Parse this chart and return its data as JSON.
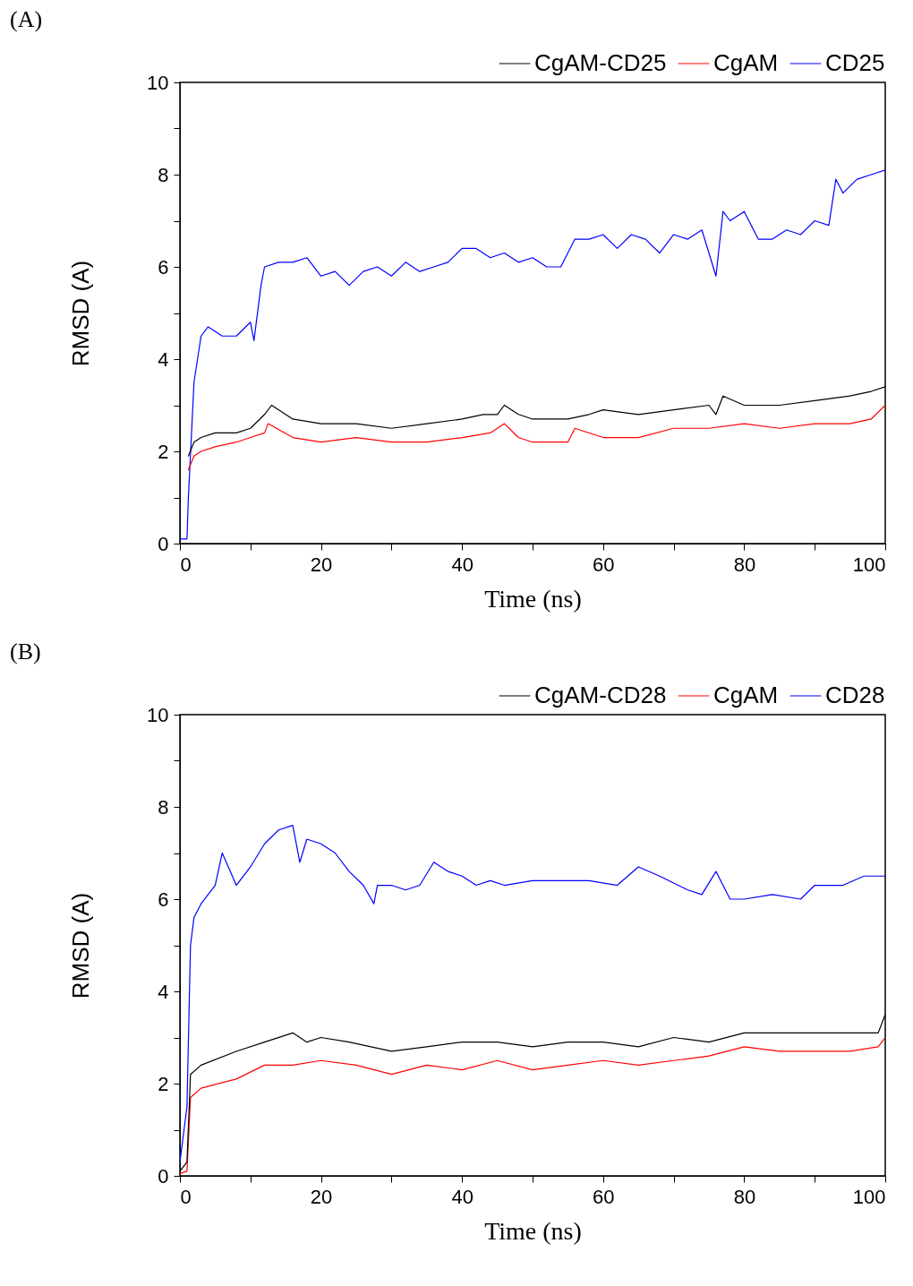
{
  "chart_data": [
    {
      "type": "line",
      "title": "(A)",
      "xlabel": "Time (ns)",
      "ylabel": "RMSD (A)",
      "xlim": [
        0,
        100
      ],
      "ylim": [
        0,
        10
      ],
      "xticks": [
        0,
        {
          "value": 10,
          "label": null
        },
        20,
        {
          "value": 30,
          "label": null
        },
        40,
        {
          "value": 50,
          "label": null
        },
        60,
        {
          "value": 70,
          "label": null
        },
        80,
        {
          "value": 90,
          "label": null
        },
        100
      ],
      "yticks": [
        0,
        {
          "value": 1,
          "label": null
        },
        2,
        {
          "value": 3,
          "label": null
        },
        4,
        {
          "value": 5,
          "label": null
        },
        6,
        {
          "value": 7,
          "label": null
        },
        8,
        {
          "value": 9,
          "label": null
        },
        10
      ],
      "grid": false,
      "legend": "top",
      "marker": "none",
      "line_style": "solid",
      "series": [
        {
          "name": "CgAM-CD25",
          "color": "#000000",
          "x": [
            1.2,
            2,
            3,
            5,
            8,
            10,
            12,
            13,
            16,
            20,
            25,
            30,
            35,
            40,
            43,
            45,
            46,
            48,
            50,
            55,
            58,
            60,
            65,
            70,
            75,
            76,
            77,
            80,
            85,
            90,
            95,
            98,
            100
          ],
          "values": [
            1.9,
            2.2,
            2.3,
            2.4,
            2.4,
            2.5,
            2.8,
            3.0,
            2.7,
            2.6,
            2.6,
            2.5,
            2.6,
            2.7,
            2.8,
            2.8,
            3.0,
            2.8,
            2.7,
            2.7,
            2.8,
            2.9,
            2.8,
            2.9,
            3.0,
            2.8,
            3.2,
            3.0,
            3.0,
            3.1,
            3.2,
            3.3,
            3.4
          ]
        },
        {
          "name": "CgAM",
          "color": "#ff0000",
          "x": [
            1.2,
            2,
            3,
            5,
            8,
            10,
            12,
            12.5,
            16,
            20,
            25,
            30,
            35,
            40,
            44,
            46,
            48,
            50,
            55,
            56,
            60,
            65,
            70,
            75,
            80,
            85,
            90,
            95,
            98,
            100
          ],
          "values": [
            1.6,
            1.9,
            2.0,
            2.1,
            2.2,
            2.3,
            2.4,
            2.6,
            2.3,
            2.2,
            2.3,
            2.2,
            2.2,
            2.3,
            2.4,
            2.6,
            2.3,
            2.2,
            2.2,
            2.5,
            2.3,
            2.3,
            2.5,
            2.5,
            2.6,
            2.5,
            2.6,
            2.6,
            2.7,
            3.0
          ]
        },
        {
          "name": "CD25",
          "color": "#0000ff",
          "x": [
            0,
            1,
            1.2,
            2,
            3,
            4,
            6,
            8,
            10,
            10.5,
            11.5,
            12,
            14,
            16,
            18,
            20,
            22,
            24,
            26,
            28,
            30,
            32,
            34,
            36,
            38,
            40,
            42,
            44,
            46,
            48,
            50,
            52,
            54,
            56,
            58,
            60,
            62,
            64,
            66,
            68,
            70,
            72,
            74,
            76,
            77,
            78,
            80,
            82,
            84,
            86,
            88,
            90,
            92,
            93,
            94,
            96,
            98,
            100
          ],
          "values": [
            0.1,
            0.1,
            1.0,
            3.5,
            4.5,
            4.7,
            4.5,
            4.5,
            4.8,
            4.4,
            5.6,
            6.0,
            6.1,
            6.1,
            6.2,
            5.8,
            5.9,
            5.6,
            5.9,
            6.0,
            5.8,
            6.1,
            5.9,
            6.0,
            6.1,
            6.4,
            6.4,
            6.2,
            6.3,
            6.1,
            6.2,
            6.0,
            6.0,
            6.6,
            6.6,
            6.7,
            6.4,
            6.7,
            6.6,
            6.3,
            6.7,
            6.6,
            6.8,
            5.8,
            7.2,
            7.0,
            7.2,
            6.6,
            6.6,
            6.8,
            6.7,
            7.0,
            6.9,
            7.9,
            7.6,
            7.9,
            8.0,
            8.1
          ]
        }
      ]
    },
    {
      "type": "line",
      "title": "(B)",
      "xlabel": "Time (ns)",
      "ylabel": "RMSD (A)",
      "xlim": [
        0,
        100
      ],
      "ylim": [
        0,
        10
      ],
      "xticks": [
        0,
        {
          "value": 10,
          "label": null
        },
        20,
        {
          "value": 30,
          "label": null
        },
        40,
        {
          "value": 50,
          "label": null
        },
        60,
        {
          "value": 70,
          "label": null
        },
        80,
        {
          "value": 90,
          "label": null
        },
        100
      ],
      "yticks": [
        0,
        {
          "value": 1,
          "label": null
        },
        2,
        {
          "value": 3,
          "label": null
        },
        4,
        {
          "value": 5,
          "label": null
        },
        6,
        {
          "value": 7,
          "label": null
        },
        8,
        {
          "value": 9,
          "label": null
        },
        10
      ],
      "grid": false,
      "legend": "top",
      "marker": "none",
      "line_style": "solid",
      "series": [
        {
          "name": "CgAM-CD28",
          "color": "#000000",
          "x": [
            0,
            1,
            1.5,
            3,
            8,
            12,
            16,
            18,
            20,
            24,
            30,
            35,
            40,
            45,
            50,
            55,
            60,
            65,
            70,
            75,
            80,
            85,
            90,
            95,
            99,
            100
          ],
          "values": [
            0.1,
            0.3,
            2.2,
            2.4,
            2.7,
            2.9,
            3.1,
            2.9,
            3.0,
            2.9,
            2.7,
            2.8,
            2.9,
            2.9,
            2.8,
            2.9,
            2.9,
            2.8,
            3.0,
            2.9,
            3.1,
            3.1,
            3.1,
            3.1,
            3.1,
            3.5
          ]
        },
        {
          "name": "CgAM",
          "color": "#ff0000",
          "x": [
            0,
            1,
            1.5,
            3,
            8,
            12,
            16,
            20,
            25,
            30,
            35,
            40,
            45,
            50,
            55,
            60,
            65,
            70,
            75,
            80,
            85,
            90,
            95,
            99,
            100
          ],
          "values": [
            0.05,
            0.1,
            1.7,
            1.9,
            2.1,
            2.4,
            2.4,
            2.5,
            2.4,
            2.2,
            2.4,
            2.3,
            2.5,
            2.3,
            2.4,
            2.5,
            2.4,
            2.5,
            2.6,
            2.8,
            2.7,
            2.7,
            2.7,
            2.8,
            3.0
          ]
        },
        {
          "name": "CD28",
          "color": "#0000ff",
          "x": [
            0,
            1,
            1.5,
            2,
            3,
            5,
            6,
            8,
            10,
            12,
            14,
            16,
            17,
            18,
            20,
            22,
            24,
            26,
            27.5,
            28,
            30,
            32,
            34,
            36,
            38,
            40,
            42,
            44,
            46,
            50,
            54,
            58,
            62,
            65,
            68,
            72,
            74,
            76,
            78,
            80,
            84,
            88,
            90,
            94,
            97,
            100
          ],
          "values": [
            0.3,
            1.5,
            5.0,
            5.6,
            5.9,
            6.3,
            7.0,
            6.3,
            6.7,
            7.2,
            7.5,
            7.6,
            6.8,
            7.3,
            7.2,
            7.0,
            6.6,
            6.3,
            5.9,
            6.3,
            6.3,
            6.2,
            6.3,
            6.8,
            6.6,
            6.5,
            6.3,
            6.4,
            6.3,
            6.4,
            6.4,
            6.4,
            6.3,
            6.7,
            6.5,
            6.2,
            6.1,
            6.6,
            6.0,
            6.0,
            6.1,
            6.0,
            6.3,
            6.3,
            6.5,
            6.5
          ]
        }
      ]
    }
  ]
}
